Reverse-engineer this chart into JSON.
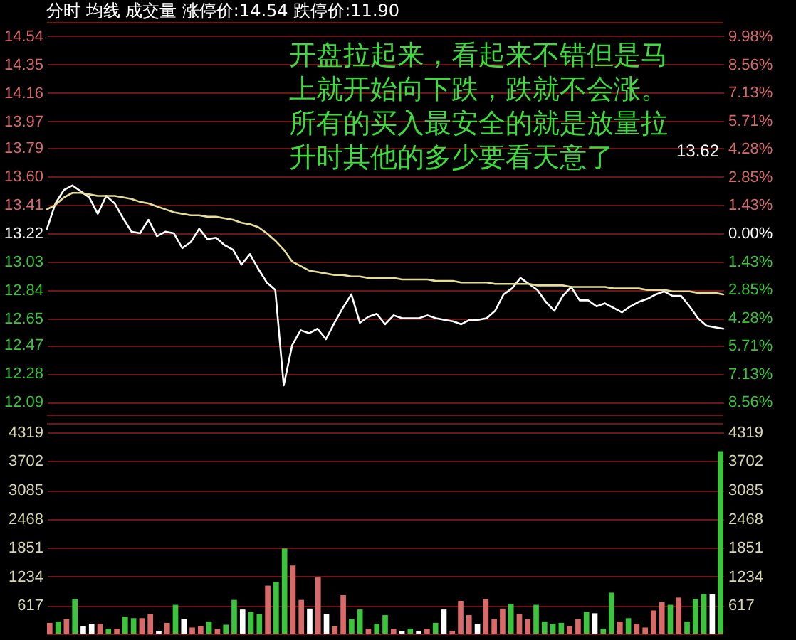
{
  "chart_data": [
    {
      "type": "line",
      "title": "分时 均线 成交量 涨停价:14.54 跌停价:11.90",
      "categories": [
        null,
        null,
        null,
        null,
        null,
        null,
        null,
        null,
        null,
        null,
        null,
        null,
        null,
        null,
        null,
        null,
        null,
        null,
        null,
        null,
        null,
        null,
        null,
        null,
        null,
        null,
        null,
        null,
        null,
        null,
        null,
        null,
        null,
        null,
        null,
        null,
        null,
        null,
        null,
        null,
        null,
        null,
        null,
        null,
        null,
        null,
        null,
        null,
        null,
        null,
        null,
        null,
        null,
        null,
        null,
        null,
        null,
        null,
        null,
        null,
        null,
        null,
        null,
        null,
        null,
        null,
        null,
        null,
        null,
        null,
        null,
        null,
        null,
        null,
        null,
        null,
        null,
        null,
        null,
        null,
        null
      ],
      "series": [
        {
          "color": "#ffffff",
          "values": [
            13.25,
            13.42,
            13.51,
            13.54,
            13.5,
            13.46,
            13.35,
            13.47,
            13.42,
            13.32,
            13.23,
            13.22,
            13.31,
            13.2,
            13.23,
            13.22,
            13.12,
            13.16,
            13.25,
            13.18,
            13.19,
            13.14,
            13.11,
            13.01,
            13.08,
            12.98,
            12.89,
            12.84,
            12.2,
            12.47,
            12.57,
            12.55,
            12.58,
            12.51,
            12.62,
            12.72,
            12.81,
            12.62,
            12.66,
            12.68,
            12.61,
            12.67,
            12.65,
            12.65,
            12.65,
            12.67,
            12.65,
            12.64,
            12.63,
            12.61,
            12.64,
            12.64,
            12.65,
            12.7,
            12.81,
            12.85,
            12.92,
            12.88,
            12.84,
            12.76,
            12.7,
            12.8,
            12.86,
            12.77,
            12.77,
            12.73,
            12.75,
            12.72,
            12.69,
            12.73,
            12.76,
            12.78,
            12.81,
            12.83,
            12.8,
            12.8,
            12.73,
            12.65,
            12.6,
            12.59,
            12.58
          ]
        },
        {
          "color": "#e6dc9a",
          "values": [
            13.38,
            13.41,
            13.46,
            13.49,
            13.49,
            13.48,
            13.47,
            13.47,
            13.47,
            13.46,
            13.45,
            13.43,
            13.42,
            13.4,
            13.38,
            13.36,
            13.35,
            13.34,
            13.34,
            13.33,
            13.33,
            13.32,
            13.31,
            13.29,
            13.28,
            13.26,
            13.22,
            13.17,
            13.11,
            13.03,
            13.0,
            12.97,
            12.96,
            12.95,
            12.94,
            12.94,
            12.93,
            12.93,
            12.92,
            12.92,
            12.92,
            12.92,
            12.91,
            12.91,
            12.91,
            12.91,
            12.9,
            12.9,
            12.9,
            12.89,
            12.89,
            12.89,
            12.89,
            12.88,
            12.88,
            12.88,
            12.88,
            12.88,
            12.87,
            12.87,
            12.87,
            12.87,
            12.86,
            12.86,
            12.86,
            12.86,
            12.86,
            12.85,
            12.85,
            12.85,
            12.85,
            12.84,
            12.84,
            12.84,
            12.83,
            12.83,
            12.83,
            12.82,
            12.82,
            12.82,
            12.81
          ]
        }
      ],
      "ylim": [
        12.0,
        14.63
      ],
      "yticks": [
        14.54,
        14.35,
        14.16,
        13.97,
        13.79,
        {
          "value": 13.6,
          "label": "13.60"
        },
        13.41,
        13.22,
        13.03,
        12.84,
        12.65,
        12.47,
        12.28,
        12.09
      ],
      "y2lim": [
        -9.23,
        10.67
      ],
      "y2ticks": [
        {
          "value": 9.98,
          "label": "9.98%"
        },
        {
          "value": 8.56,
          "label": "8.56%"
        },
        {
          "value": 7.13,
          "label": "7.13%"
        },
        {
          "value": 5.71,
          "label": "5.71%"
        },
        {
          "value": 4.28,
          "label": "4.28%"
        },
        {
          "value": 2.85,
          "label": "2.85%"
        },
        {
          "value": 1.43,
          "label": "1.43%"
        },
        {
          "value": 0,
          "label": "0.00%"
        },
        {
          "value": -1.43,
          "label": "1.43%"
        },
        {
          "value": -2.85,
          "label": "2.85%"
        },
        {
          "value": -4.28,
          "label": "4.28%"
        },
        {
          "value": -5.71,
          "label": "5.71%"
        },
        {
          "value": -7.13,
          "label": "7.13%"
        },
        {
          "value": -8.56,
          "label": "8.56%"
        }
      ],
      "grid": "y",
      "tick_labels": "y",
      "annotations": [
        "开盘拉起来，看起来不错但是马上就开始向下跌，跌就不会涨。所有的买入最安全的就是放量拉升时其他的多少要看天意了",
        "13.62"
      ]
    },
    {
      "type": "bar",
      "categories": [
        null,
        null,
        null,
        null,
        null,
        null,
        null,
        null,
        null,
        null,
        null,
        null,
        null,
        null,
        null,
        null,
        null,
        null,
        null,
        null,
        null,
        null,
        null,
        null,
        null,
        null,
        null,
        null,
        null,
        null,
        null,
        null,
        null,
        null,
        null,
        null,
        null,
        null,
        null,
        null,
        null,
        null,
        null,
        null,
        null,
        null,
        null,
        null,
        null,
        null,
        null,
        null,
        null,
        null,
        null,
        null,
        null,
        null,
        null,
        null,
        null,
        null,
        null,
        null,
        null,
        null,
        null,
        null,
        null,
        null,
        null,
        null,
        null,
        null,
        null,
        null,
        null,
        null,
        null,
        null,
        null
      ],
      "values": [
        245,
        275,
        325,
        755,
        175,
        225,
        225,
        120,
        120,
        375,
        345,
        345,
        430,
        70,
        245,
        630,
        325,
        145,
        175,
        275,
        120,
        205,
        735,
        530,
        480,
        430,
        1040,
        1120,
        1836,
        1470,
        735,
        550,
        1215,
        430,
        175,
        835,
        325,
        530,
        120,
        225,
        410,
        120,
        70,
        120,
        70,
        120,
        245,
        530,
        70,
        715,
        410,
        225,
        755,
        325,
        550,
        650,
        430,
        325,
        630,
        275,
        225,
        245,
        175,
        325,
        480,
        450,
        120,
        890,
        275,
        345,
        225,
        145,
        510,
        685,
        630,
        785,
        275,
        755,
        855,
        855,
        3915
      ],
      "colors": [
        "#d86a6a",
        "#3cc43c",
        "#d86a6a",
        "#3cc43c",
        "#ffffff",
        "#ffffff",
        "#d86a6a",
        "#3cc43c",
        "#d86a6a",
        "#3cc43c",
        "#3cc43c",
        "#d86a6a",
        "#d86a6a",
        "#ffffff",
        "#d86a6a",
        "#3cc43c",
        "#ffffff",
        "#d86a6a",
        "#d86a6a",
        "#3cc43c",
        "#d86a6a",
        "#3cc43c",
        "#3cc43c",
        "#ffffff",
        "#3cc43c",
        "#3cc43c",
        "#d86a6a",
        "#3cc43c",
        "#3cc43c",
        "#d86a6a",
        "#d86a6a",
        "#ffffff",
        "#d86a6a",
        "#ffffff",
        "#d86a6a",
        "#d86a6a",
        "#3cc43c",
        "#3cc43c",
        "#d86a6a",
        "#3cc43c",
        "#3cc43c",
        "#d86a6a",
        "#ffffff",
        "#3cc43c",
        "#ffffff",
        "#d86a6a",
        "#3cc43c",
        "#ffffff",
        "#d86a6a",
        "#d86a6a",
        "#d86a6a",
        "#ffffff",
        "#d86a6a",
        "#d86a6a",
        "#d86a6a",
        "#3cc43c",
        "#d86a6a",
        "#d86a6a",
        "#3cc43c",
        "#3cc43c",
        "#3cc43c",
        "#3cc43c",
        "#d86a6a",
        "#d86a6a",
        "#3cc43c",
        "#ffffff",
        "#3cc43c",
        "#3cc43c",
        "#d86a6a",
        "#3cc43c",
        "#d86a6a",
        "#d86a6a",
        "#d86a6a",
        "#d86a6a",
        "#3cc43c",
        "#d86a6a",
        "#3cc43c",
        "#3cc43c",
        "#3cc43c",
        "#ffffff",
        "#3cc43c"
      ],
      "ylim": [
        0,
        4500
      ],
      "yticks": [
        617,
        1234,
        1851,
        2468,
        3085,
        3702,
        4319
      ],
      "y2lim": [
        0,
        4500
      ],
      "y2ticks": [
        617,
        1234,
        1851,
        2468,
        3085,
        3702,
        4319
      ],
      "grid": "y",
      "tick_labels": "y"
    }
  ]
}
